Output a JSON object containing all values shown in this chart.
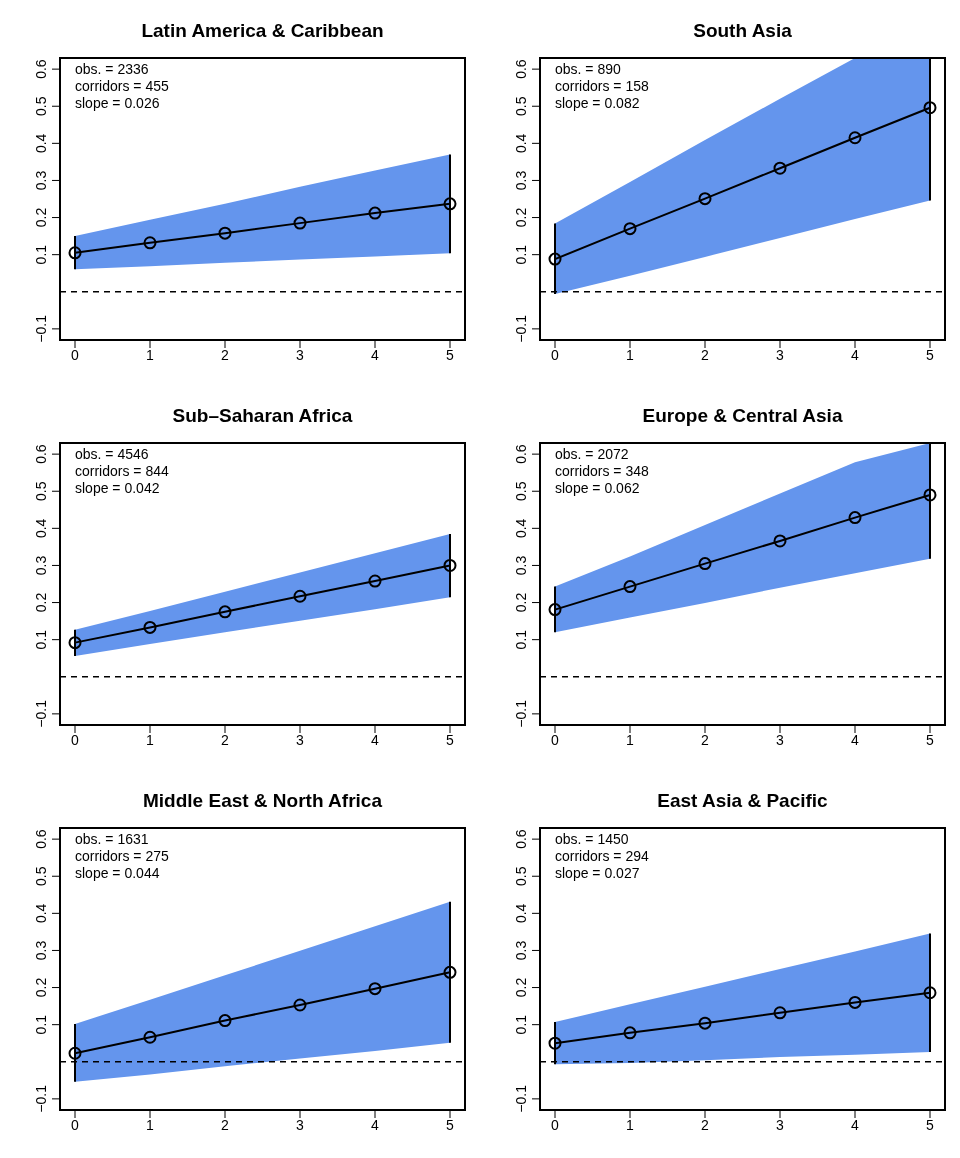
{
  "chart_data": [
    {
      "type": "line",
      "title": "Latin America & Caribbean",
      "x": [
        0,
        1,
        2,
        3,
        4,
        5
      ],
      "xlim": [
        -0.2,
        5.2
      ],
      "xticks": [
        0,
        1,
        2,
        3,
        4,
        5
      ],
      "ylim": [
        -0.13,
        0.63
      ],
      "yticks": [
        -0.1,
        0.1,
        0.2,
        0.3,
        0.4,
        0.5,
        0.6
      ],
      "marker": "circle",
      "line_style": "solid",
      "series": [
        {
          "color": "#000000",
          "values": [
            0.105,
            0.132,
            0.158,
            0.185,
            0.212,
            0.237
          ],
          "lower": [
            0.061,
            0.069,
            0.078,
            0.087,
            0.095,
            0.104
          ],
          "upper": [
            0.15,
            0.194,
            0.237,
            0.283,
            0.327,
            0.37
          ],
          "errors": [
            [
              0.061,
              0.15
            ],
            null,
            null,
            null,
            null,
            [
              0.104,
              0.37
            ]
          ]
        }
      ],
      "ref_lines": [
        {
          "axis": "y",
          "value": 0,
          "color": "#000000",
          "line_style": "dashed"
        }
      ],
      "annotations": [
        "obs. = 2336",
        "corridors = 455",
        "slope = 0.026"
      ]
    },
    {
      "type": "line",
      "title": "South Asia",
      "x": [
        0,
        1,
        2,
        3,
        4,
        5
      ],
      "xlim": [
        -0.2,
        5.2
      ],
      "xticks": [
        0,
        1,
        2,
        3,
        4,
        5
      ],
      "ylim": [
        -0.13,
        0.63
      ],
      "yticks": [
        -0.1,
        0.1,
        0.2,
        0.3,
        0.4,
        0.5,
        0.6
      ],
      "marker": "circle",
      "line_style": "solid",
      "series": [
        {
          "color": "#000000",
          "values": [
            0.088,
            0.17,
            0.251,
            0.333,
            0.415,
            0.496
          ],
          "lower": [
            -0.006,
            0.043,
            0.094,
            0.145,
            0.196,
            0.246
          ],
          "upper": [
            0.184,
            0.296,
            0.409,
            0.52,
            0.63,
            0.63
          ],
          "errors": [
            [
              -0.006,
              0.184
            ],
            null,
            null,
            null,
            null,
            [
              0.246,
              0.63
            ]
          ]
        }
      ],
      "ref_lines": [
        {
          "axis": "y",
          "value": 0,
          "color": "#000000",
          "line_style": "dashed"
        }
      ],
      "annotations": [
        "obs. = 890",
        "corridors = 158",
        "slope = 0.082"
      ]
    },
    {
      "type": "line",
      "title": "Sub–Saharan Africa",
      "x": [
        0,
        1,
        2,
        3,
        4,
        5
      ],
      "xlim": [
        -0.2,
        5.2
      ],
      "xticks": [
        0,
        1,
        2,
        3,
        4,
        5
      ],
      "ylim": [
        -0.13,
        0.63
      ],
      "yticks": [
        -0.1,
        0.1,
        0.2,
        0.3,
        0.4,
        0.5,
        0.6
      ],
      "marker": "circle",
      "line_style": "solid",
      "series": [
        {
          "color": "#000000",
          "values": [
            0.092,
            0.133,
            0.175,
            0.217,
            0.258,
            0.3
          ],
          "lower": [
            0.056,
            0.088,
            0.12,
            0.151,
            0.182,
            0.214
          ],
          "upper": [
            0.127,
            0.177,
            0.229,
            0.281,
            0.333,
            0.385
          ],
          "errors": [
            [
              0.056,
              0.127
            ],
            null,
            null,
            null,
            null,
            [
              0.214,
              0.385
            ]
          ]
        }
      ],
      "ref_lines": [
        {
          "axis": "y",
          "value": 0,
          "color": "#000000",
          "line_style": "dashed"
        }
      ],
      "annotations": [
        "obs. = 4546",
        "corridors = 844",
        "slope = 0.042"
      ]
    },
    {
      "type": "line",
      "title": "Europe & Central Asia",
      "x": [
        0,
        1,
        2,
        3,
        4,
        5
      ],
      "xlim": [
        -0.2,
        5.2
      ],
      "xticks": [
        0,
        1,
        2,
        3,
        4,
        5
      ],
      "ylim": [
        -0.13,
        0.63
      ],
      "yticks": [
        -0.1,
        0.1,
        0.2,
        0.3,
        0.4,
        0.5,
        0.6
      ],
      "marker": "circle",
      "line_style": "solid",
      "series": [
        {
          "color": "#000000",
          "values": [
            0.181,
            0.243,
            0.305,
            0.366,
            0.429,
            0.49
          ],
          "lower": [
            0.12,
            0.16,
            0.199,
            0.24,
            0.279,
            0.318
          ],
          "upper": [
            0.243,
            0.324,
            0.409,
            0.494,
            0.578,
            0.63
          ],
          "errors": [
            [
              0.12,
              0.243
            ],
            null,
            null,
            null,
            null,
            [
              0.318,
              0.63
            ]
          ]
        }
      ],
      "ref_lines": [
        {
          "axis": "y",
          "value": 0,
          "color": "#000000",
          "line_style": "dashed"
        }
      ],
      "annotations": [
        "obs. = 2072",
        "corridors = 348",
        "slope = 0.062"
      ]
    },
    {
      "type": "line",
      "title": "Middle East & North Africa",
      "x": [
        0,
        1,
        2,
        3,
        4,
        5
      ],
      "xlim": [
        -0.2,
        5.2
      ],
      "xticks": [
        0,
        1,
        2,
        3,
        4,
        5
      ],
      "ylim": [
        -0.13,
        0.63
      ],
      "yticks": [
        -0.1,
        0.1,
        0.2,
        0.3,
        0.4,
        0.5,
        0.6
      ],
      "marker": "circle",
      "line_style": "solid",
      "series": [
        {
          "color": "#000000",
          "values": [
            0.023,
            0.066,
            0.111,
            0.153,
            0.197,
            0.241
          ],
          "lower": [
            -0.054,
            -0.034,
            -0.012,
            0.009,
            0.029,
            0.051
          ],
          "upper": [
            0.102,
            0.167,
            0.233,
            0.299,
            0.365,
            0.431
          ],
          "errors": [
            [
              -0.054,
              0.102
            ],
            null,
            null,
            null,
            null,
            [
              0.051,
              0.431
            ]
          ]
        }
      ],
      "ref_lines": [
        {
          "axis": "y",
          "value": 0,
          "color": "#000000",
          "line_style": "dashed"
        }
      ],
      "annotations": [
        "obs. = 1631",
        "corridors = 275",
        "slope = 0.044"
      ]
    },
    {
      "type": "line",
      "title": "East Asia & Pacific",
      "x": [
        0,
        1,
        2,
        3,
        4,
        5
      ],
      "xlim": [
        -0.2,
        5.2
      ],
      "xticks": [
        0,
        1,
        2,
        3,
        4,
        5
      ],
      "ylim": [
        -0.13,
        0.63
      ],
      "yticks": [
        -0.1,
        0.1,
        0.2,
        0.3,
        0.4,
        0.5,
        0.6
      ],
      "marker": "circle",
      "line_style": "solid",
      "series": [
        {
          "color": "#000000",
          "values": [
            0.05,
            0.078,
            0.104,
            0.132,
            0.16,
            0.186
          ],
          "lower": [
            -0.007,
            -0.003,
            0.004,
            0.013,
            0.019,
            0.026
          ],
          "upper": [
            0.107,
            0.155,
            0.202,
            0.25,
            0.297,
            0.346
          ],
          "errors": [
            [
              -0.007,
              0.107
            ],
            null,
            null,
            null,
            null,
            [
              0.026,
              0.346
            ]
          ]
        }
      ],
      "ref_lines": [
        {
          "axis": "y",
          "value": 0,
          "color": "#000000",
          "line_style": "dashed"
        }
      ],
      "annotations": [
        "obs. = 1450",
        "corridors = 294",
        "slope = 0.027"
      ]
    }
  ]
}
